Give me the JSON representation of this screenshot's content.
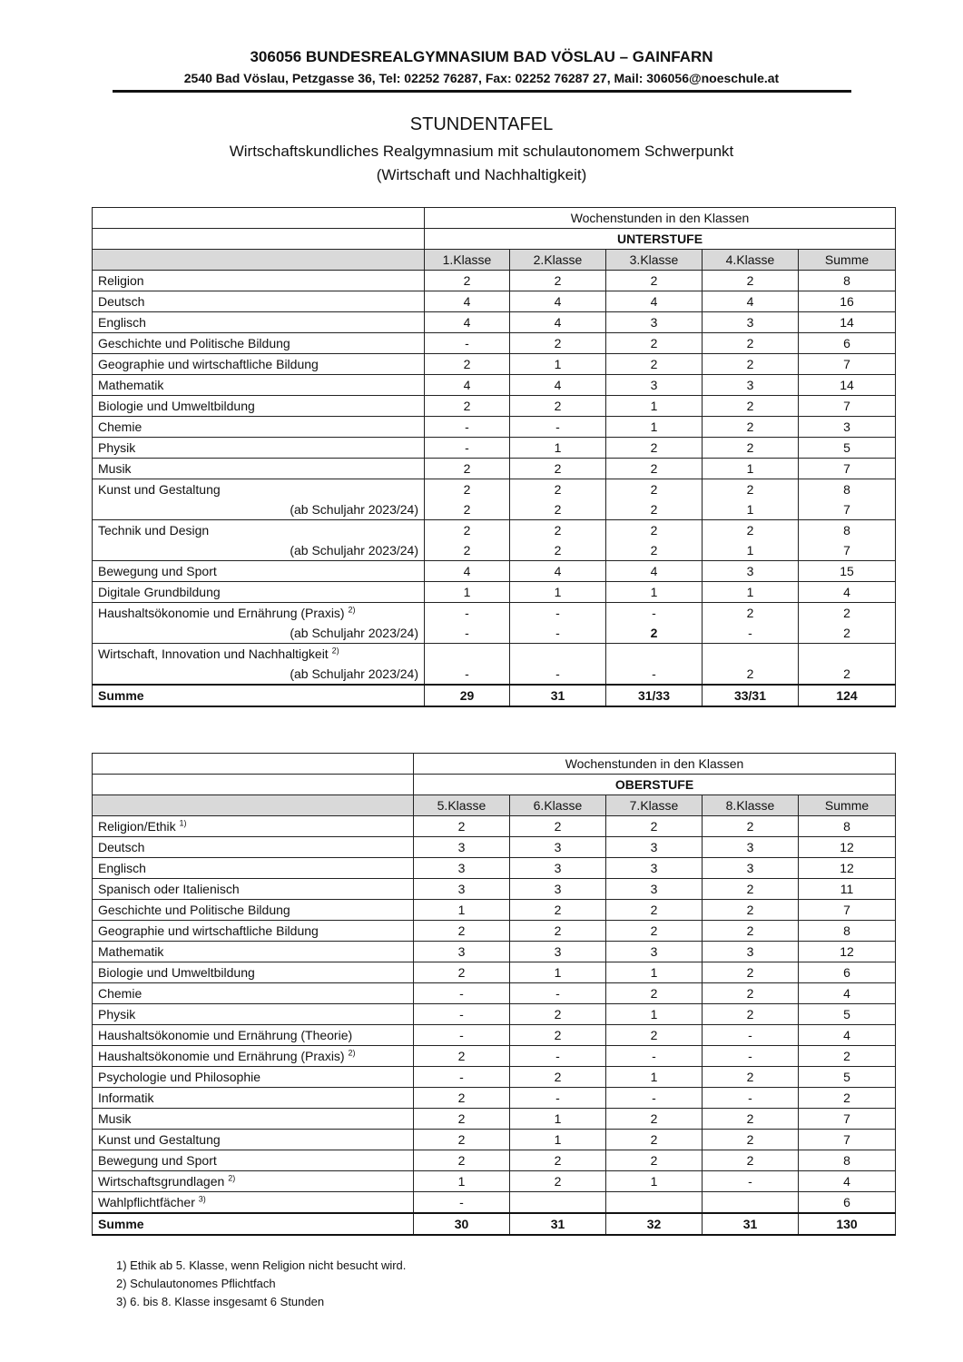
{
  "header": {
    "school": "306056 BUNDESREALGYMNASIUM BAD VÖSLAU – GAINFARN",
    "address": "2540 Bad Vöslau, Petzgasse 36, Tel: 02252 76287, Fax: 02252 76287 27, Mail: 306056@noeschule.at"
  },
  "title": "STUNDENTAFEL",
  "subtitle1": "Wirtschaftskundliches Realgymnasium mit schulautonomem Schwerpunkt",
  "subtitle2": "(Wirtschaft und Nachhaltigkeit)",
  "tables": [
    {
      "caption": "Wochenstunden in den Klassen",
      "level": "UNTERSTUFE",
      "columns": [
        "1.Klasse",
        "2.Klasse",
        "3.Klasse",
        "4.Klasse",
        "Summe"
      ],
      "rows": [
        {
          "lines": [
            {
              "label": "Religion",
              "values": [
                "2",
                "2",
                "2",
                "2",
                "8"
              ]
            }
          ]
        },
        {
          "lines": [
            {
              "label": "Deutsch",
              "values": [
                "4",
                "4",
                "4",
                "4",
                "16"
              ]
            }
          ]
        },
        {
          "lines": [
            {
              "label": "Englisch",
              "values": [
                "4",
                "4",
                "3",
                "3",
                "14"
              ]
            }
          ]
        },
        {
          "lines": [
            {
              "label": "Geschichte und Politische Bildung",
              "values": [
                "-",
                "2",
                "2",
                "2",
                "6"
              ]
            }
          ]
        },
        {
          "lines": [
            {
              "label": "Geographie und wirtschaftliche Bildung",
              "values": [
                "2",
                "1",
                "2",
                "2",
                "7"
              ]
            }
          ]
        },
        {
          "lines": [
            {
              "label": "Mathematik",
              "values": [
                "4",
                "4",
                "3",
                "3",
                "14"
              ]
            }
          ]
        },
        {
          "lines": [
            {
              "label": "Biologie und Umweltbildung",
              "values": [
                "2",
                "2",
                "1",
                "2",
                "7"
              ]
            }
          ]
        },
        {
          "lines": [
            {
              "label": "Chemie",
              "values": [
                "-",
                "-",
                "1",
                "2",
                "3"
              ]
            }
          ]
        },
        {
          "lines": [
            {
              "label": "Physik",
              "values": [
                "-",
                "1",
                "2",
                "2",
                "5"
              ]
            }
          ]
        },
        {
          "lines": [
            {
              "label": "Musik",
              "values": [
                "2",
                "2",
                "2",
                "1",
                "7"
              ]
            }
          ]
        },
        {
          "lines": [
            {
              "label": "Kunst und Gestaltung",
              "values": [
                "2",
                "2",
                "2",
                "2",
                "8"
              ]
            },
            {
              "label": "(ab Schuljahr 2023/24)",
              "values": [
                "2",
                "2",
                "2",
                "1",
                "7"
              ]
            }
          ]
        },
        {
          "lines": [
            {
              "label": "Technik und Design",
              "values": [
                "2",
                "2",
                "2",
                "2",
                "8"
              ]
            },
            {
              "label": "(ab Schuljahr 2023/24)",
              "values": [
                "2",
                "2",
                "2",
                "1",
                "7"
              ]
            }
          ]
        },
        {
          "lines": [
            {
              "label": "Bewegung und Sport",
              "values": [
                "4",
                "4",
                "4",
                "3",
                "15"
              ]
            }
          ]
        },
        {
          "lines": [
            {
              "label": "Digitale Grundbildung",
              "values": [
                "1",
                "1",
                "1",
                "1",
                "4"
              ]
            }
          ]
        },
        {
          "lines": [
            {
              "label": "Haushaltsökonomie und Ernährung (Praxis)",
              "sup": "2)",
              "values": [
                "-",
                "-",
                "-",
                "2",
                "2"
              ]
            },
            {
              "label": "(ab Schuljahr 2023/24)",
              "values": [
                "-",
                "-",
                "2",
                "-",
                "2"
              ],
              "bold_index": 2
            }
          ]
        },
        {
          "lines": [
            {
              "label": "Wirtschaft, Innovation und Nachhaltigkeit",
              "sup": "2)",
              "values": [
                "",
                "",
                "",
                "",
                ""
              ]
            },
            {
              "label": "(ab Schuljahr 2023/24)",
              "values": [
                "-",
                "-",
                "-",
                "2",
                "2"
              ]
            }
          ]
        }
      ],
      "sum": {
        "label": "Summe",
        "values": [
          "29",
          "31",
          "31/33",
          "33/31",
          "124"
        ]
      }
    },
    {
      "caption": "Wochenstunden in den Klassen",
      "level": "OBERSTUFE",
      "columns": [
        "5.Klasse",
        "6.Klasse",
        "7.Klasse",
        "8.Klasse",
        "Summe"
      ],
      "rows": [
        {
          "lines": [
            {
              "label": "Religion/Ethik",
              "sup": "1)",
              "values": [
                "2",
                "2",
                "2",
                "2",
                "8"
              ]
            }
          ]
        },
        {
          "lines": [
            {
              "label": "Deutsch",
              "values": [
                "3",
                "3",
                "3",
                "3",
                "12"
              ]
            }
          ]
        },
        {
          "lines": [
            {
              "label": "Englisch",
              "values": [
                "3",
                "3",
                "3",
                "3",
                "12"
              ]
            }
          ]
        },
        {
          "lines": [
            {
              "label": "Spanisch oder Italienisch",
              "values": [
                "3",
                "3",
                "3",
                "2",
                "11"
              ]
            }
          ]
        },
        {
          "lines": [
            {
              "label": "Geschichte und Politische Bildung",
              "values": [
                "1",
                "2",
                "2",
                "2",
                "7"
              ]
            }
          ]
        },
        {
          "lines": [
            {
              "label": "Geographie und wirtschaftliche Bildung",
              "values": [
                "2",
                "2",
                "2",
                "2",
                "8"
              ]
            }
          ]
        },
        {
          "lines": [
            {
              "label": "Mathematik",
              "values": [
                "3",
                "3",
                "3",
                "3",
                "12"
              ]
            }
          ]
        },
        {
          "lines": [
            {
              "label": "Biologie und Umweltbildung",
              "values": [
                "2",
                "1",
                "1",
                "2",
                "6"
              ]
            }
          ]
        },
        {
          "lines": [
            {
              "label": "Chemie",
              "values": [
                "-",
                "-",
                "2",
                "2",
                "4"
              ]
            }
          ]
        },
        {
          "lines": [
            {
              "label": "Physik",
              "values": [
                "-",
                "2",
                "1",
                "2",
                "5"
              ]
            }
          ]
        },
        {
          "lines": [
            {
              "label": "Haushaltsökonomie und Ernährung (Theorie)",
              "values": [
                "-",
                "2",
                "2",
                "-",
                "4"
              ]
            }
          ]
        },
        {
          "lines": [
            {
              "label": "Haushaltsökonomie und Ernährung (Praxis)",
              "sup": "2)",
              "values": [
                "2",
                "-",
                "-",
                "-",
                "2"
              ]
            }
          ]
        },
        {
          "lines": [
            {
              "label": "Psychologie und Philosophie",
              "values": [
                "-",
                "2",
                "1",
                "2",
                "5"
              ]
            }
          ]
        },
        {
          "lines": [
            {
              "label": "Informatik",
              "values": [
                "2",
                "-",
                "-",
                "-",
                "2"
              ]
            }
          ]
        },
        {
          "lines": [
            {
              "label": "Musik",
              "values": [
                "2",
                "1",
                "2",
                "2",
                "7"
              ]
            }
          ]
        },
        {
          "lines": [
            {
              "label": "Kunst und Gestaltung",
              "values": [
                "2",
                "1",
                "2",
                "2",
                "7"
              ]
            }
          ]
        },
        {
          "lines": [
            {
              "label": "Bewegung und Sport",
              "values": [
                "2",
                "2",
                "2",
                "2",
                "8"
              ]
            }
          ]
        },
        {
          "lines": [
            {
              "label": "Wirtschaftsgrundlagen",
              "sup": "2)",
              "values": [
                "1",
                "2",
                "1",
                "-",
                "4"
              ]
            }
          ]
        },
        {
          "lines": [
            {
              "label": "Wahlpflichtfächer",
              "sup": "3)",
              "values": [
                "-",
                "",
                "",
                "",
                "6"
              ]
            }
          ]
        }
      ],
      "sum": {
        "label": "Summe",
        "values": [
          "30",
          "31",
          "32",
          "31",
          "130"
        ]
      }
    }
  ],
  "footnotes": [
    "1) Ethik ab 5. Klasse, wenn Religion nicht besucht wird.",
    "2) Schulautonomes Pflichtfach",
    "3) 6. bis 8. Klasse insgesamt 6 Stunden"
  ]
}
